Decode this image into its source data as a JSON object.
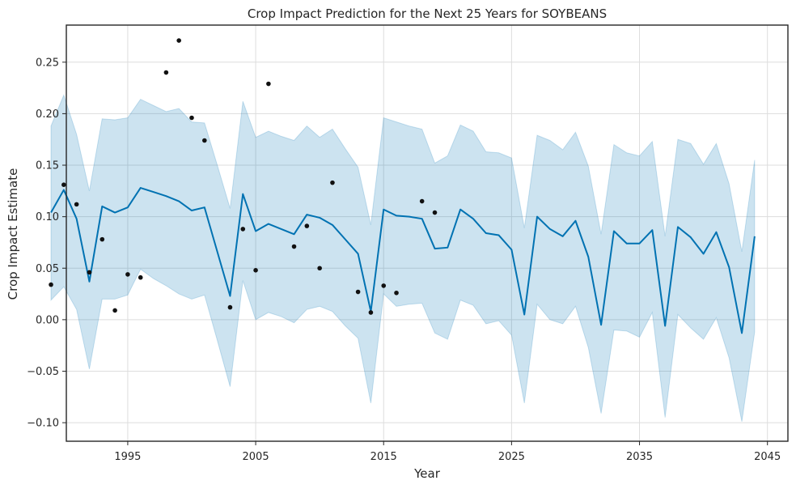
{
  "chart_data": {
    "type": "line",
    "title": "Crop Impact Prediction for the Next 25 Years for SOYBEANS",
    "xlabel": "Year",
    "ylabel": "Crop Impact Estimate",
    "xlim": [
      1990.2,
      2046.6
    ],
    "ylim": [
      -0.118,
      0.286
    ],
    "x_ticks": [
      1995,
      2005,
      2015,
      2025,
      2035,
      2045
    ],
    "y_ticks": [
      -0.1,
      -0.05,
      0.0,
      0.05,
      0.1,
      0.15,
      0.2,
      0.25
    ],
    "y_tick_labels": [
      "−0.10",
      "−0.05",
      "0.00",
      "0.05",
      "0.10",
      "0.15",
      "0.20",
      "0.25"
    ],
    "grid": true,
    "colors": {
      "forecast": "#0072b2",
      "interval": "#0072b2",
      "observed": "#111111",
      "grid": "#dddddd",
      "frame": "#262626"
    },
    "series": [
      {
        "kind": "forecast",
        "x": [
          1989,
          1990,
          1991,
          1992,
          1993,
          1994,
          1995,
          1996,
          1997,
          1998,
          1999,
          2000,
          2001,
          2002,
          2003,
          2004,
          2005,
          2006,
          2007,
          2008,
          2009,
          2010,
          2011,
          2012,
          2013,
          2014,
          2015,
          2016,
          2017,
          2018,
          2019,
          2020,
          2021,
          2022,
          2023,
          2024,
          2025,
          2026,
          2027,
          2028,
          2029,
          2030,
          2031,
          2032,
          2033,
          2034,
          2035,
          2036,
          2037,
          2038,
          2039,
          2040,
          2041,
          2042,
          2043,
          2044
        ],
        "y": [
          0.104,
          0.126,
          0.098,
          0.037,
          0.11,
          0.104,
          0.109,
          0.128,
          0.124,
          0.12,
          0.115,
          0.106,
          0.109,
          0.066,
          0.023,
          0.122,
          0.086,
          0.093,
          0.088,
          0.083,
          0.102,
          0.099,
          0.092,
          0.078,
          0.064,
          0.008,
          0.107,
          0.101,
          0.1,
          0.098,
          0.069,
          0.07,
          0.107,
          0.098,
          0.084,
          0.082,
          0.068,
          0.005,
          0.1,
          0.088,
          0.081,
          0.096,
          0.061,
          -0.005,
          0.086,
          0.074,
          0.074,
          0.087,
          -0.006,
          0.09,
          0.08,
          0.064,
          0.085,
          0.051,
          -0.013,
          0.081
        ]
      },
      {
        "kind": "interval",
        "x": [
          1989,
          1990,
          1991,
          1992,
          1993,
          1994,
          1995,
          1996,
          1997,
          1998,
          1999,
          2000,
          2001,
          2002,
          2003,
          2004,
          2005,
          2006,
          2007,
          2008,
          2009,
          2010,
          2011,
          2012,
          2013,
          2014,
          2015,
          2016,
          2017,
          2018,
          2019,
          2020,
          2021,
          2022,
          2023,
          2024,
          2025,
          2026,
          2027,
          2028,
          2029,
          2030,
          2031,
          2032,
          2033,
          2034,
          2035,
          2036,
          2037,
          2038,
          2039,
          2040,
          2041,
          2042,
          2043,
          2044
        ],
        "upper": [
          0.188,
          0.218,
          0.18,
          0.125,
          0.195,
          0.194,
          0.196,
          0.214,
          0.208,
          0.202,
          0.205,
          0.192,
          0.191,
          0.15,
          0.108,
          0.212,
          0.177,
          0.183,
          0.178,
          0.174,
          0.188,
          0.177,
          0.185,
          0.166,
          0.148,
          0.092,
          0.196,
          0.192,
          0.188,
          0.185,
          0.152,
          0.159,
          0.189,
          0.183,
          0.163,
          0.162,
          0.157,
          0.089,
          0.179,
          0.174,
          0.165,
          0.182,
          0.149,
          0.083,
          0.17,
          0.162,
          0.159,
          0.173,
          0.081,
          0.175,
          0.171,
          0.151,
          0.171,
          0.132,
          0.066,
          0.155
        ],
        "lower": [
          0.019,
          0.032,
          0.01,
          -0.048,
          0.02,
          0.02,
          0.024,
          0.049,
          0.04,
          0.033,
          0.025,
          0.02,
          0.024,
          -0.02,
          -0.065,
          0.038,
          0.0,
          0.007,
          0.003,
          -0.003,
          0.01,
          0.013,
          0.008,
          -0.006,
          -0.018,
          -0.081,
          0.025,
          0.013,
          0.015,
          0.016,
          -0.013,
          -0.019,
          0.019,
          0.014,
          -0.004,
          -0.001,
          -0.015,
          -0.081,
          0.015,
          0.0,
          -0.004,
          0.013,
          -0.027,
          -0.091,
          -0.01,
          -0.011,
          -0.017,
          0.007,
          -0.095,
          0.005,
          -0.008,
          -0.019,
          0.002,
          -0.037,
          -0.099,
          -0.012
        ]
      },
      {
        "kind": "observed",
        "x": [
          1989,
          1990,
          1991,
          1992,
          1993,
          1994,
          1995,
          1996,
          1998,
          1999,
          2000,
          2001,
          2003,
          2004,
          2005,
          2006,
          2008,
          2009,
          2010,
          2011,
          2013,
          2014,
          2015,
          2016,
          2018,
          2019
        ],
        "y": [
          0.034,
          0.131,
          0.112,
          0.046,
          0.078,
          0.009,
          0.044,
          0.041,
          0.24,
          0.271,
          0.196,
          0.174,
          0.012,
          0.088,
          0.048,
          0.229,
          0.071,
          0.091,
          0.05,
          0.133,
          0.027,
          0.007,
          0.033,
          0.026,
          0.115,
          0.104
        ]
      }
    ]
  }
}
